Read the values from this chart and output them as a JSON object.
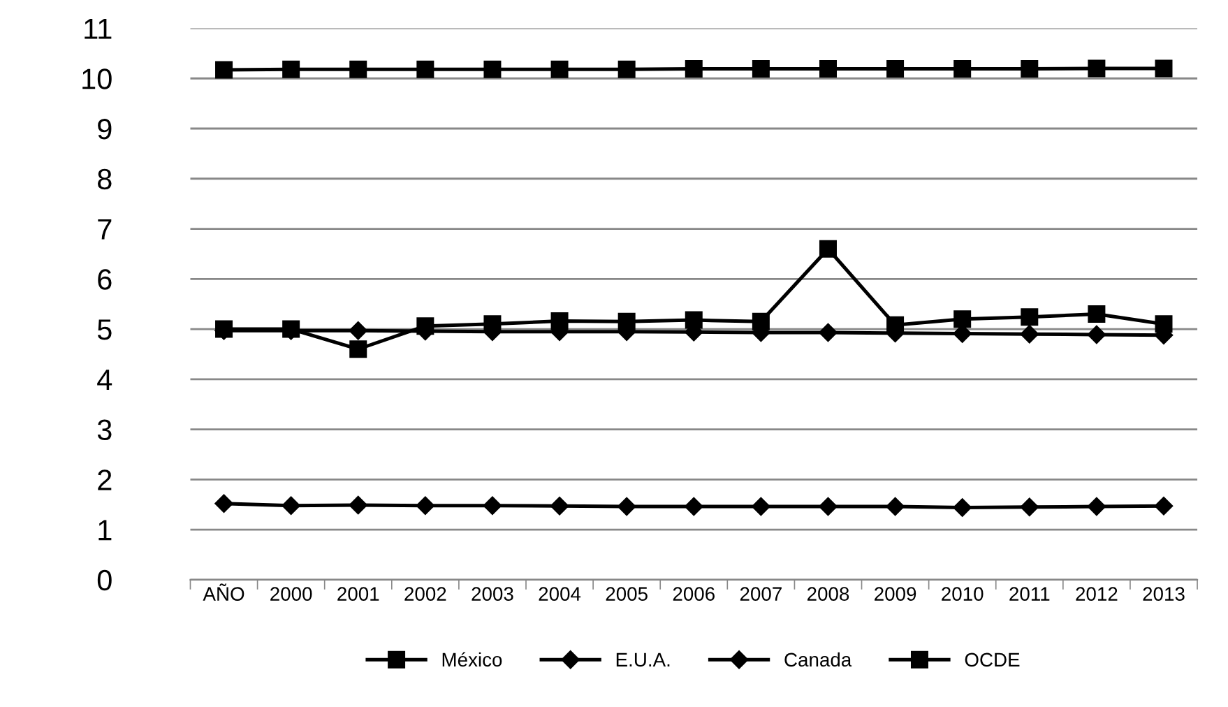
{
  "chart_data": {
    "type": "line",
    "categories": [
      "AÑO",
      "2000",
      "2001",
      "2002",
      "2003",
      "2004",
      "2005",
      "2006",
      "2007",
      "2008",
      "2009",
      "2010",
      "2011",
      "2012",
      "2013"
    ],
    "series": [
      {
        "name": "México",
        "color": "#000000",
        "marker": "square",
        "values": [
          5.0,
          5.0,
          4.6,
          5.06,
          5.1,
          5.16,
          5.15,
          5.18,
          5.15,
          6.6,
          5.08,
          5.2,
          5.24,
          5.3,
          5.1
        ]
      },
      {
        "name": "E.U.A.",
        "color": "#000000",
        "marker": "diamond",
        "values": [
          1.52,
          1.48,
          1.49,
          1.48,
          1.48,
          1.47,
          1.46,
          1.46,
          1.46,
          1.46,
          1.46,
          1.44,
          1.45,
          1.46,
          1.47
        ]
      },
      {
        "name": "Canada",
        "color": "#000000",
        "marker": "diamond",
        "values": [
          4.97,
          4.97,
          4.97,
          4.96,
          4.95,
          4.95,
          4.95,
          4.94,
          4.93,
          4.93,
          4.92,
          4.91,
          4.9,
          4.89,
          4.88
        ]
      },
      {
        "name": "OCDE",
        "color": "#000000",
        "marker": "square",
        "values": [
          10.17,
          10.18,
          10.18,
          10.18,
          10.18,
          10.18,
          10.18,
          10.19,
          10.19,
          10.19,
          10.19,
          10.19,
          10.19,
          10.2,
          10.2
        ]
      }
    ],
    "ylim": [
      0,
      11
    ],
    "yticks": [
      0,
      1,
      2,
      3,
      4,
      5,
      6,
      7,
      8,
      9,
      10,
      11
    ],
    "grid": "y",
    "legend": "bottom",
    "line_style": "solid"
  }
}
